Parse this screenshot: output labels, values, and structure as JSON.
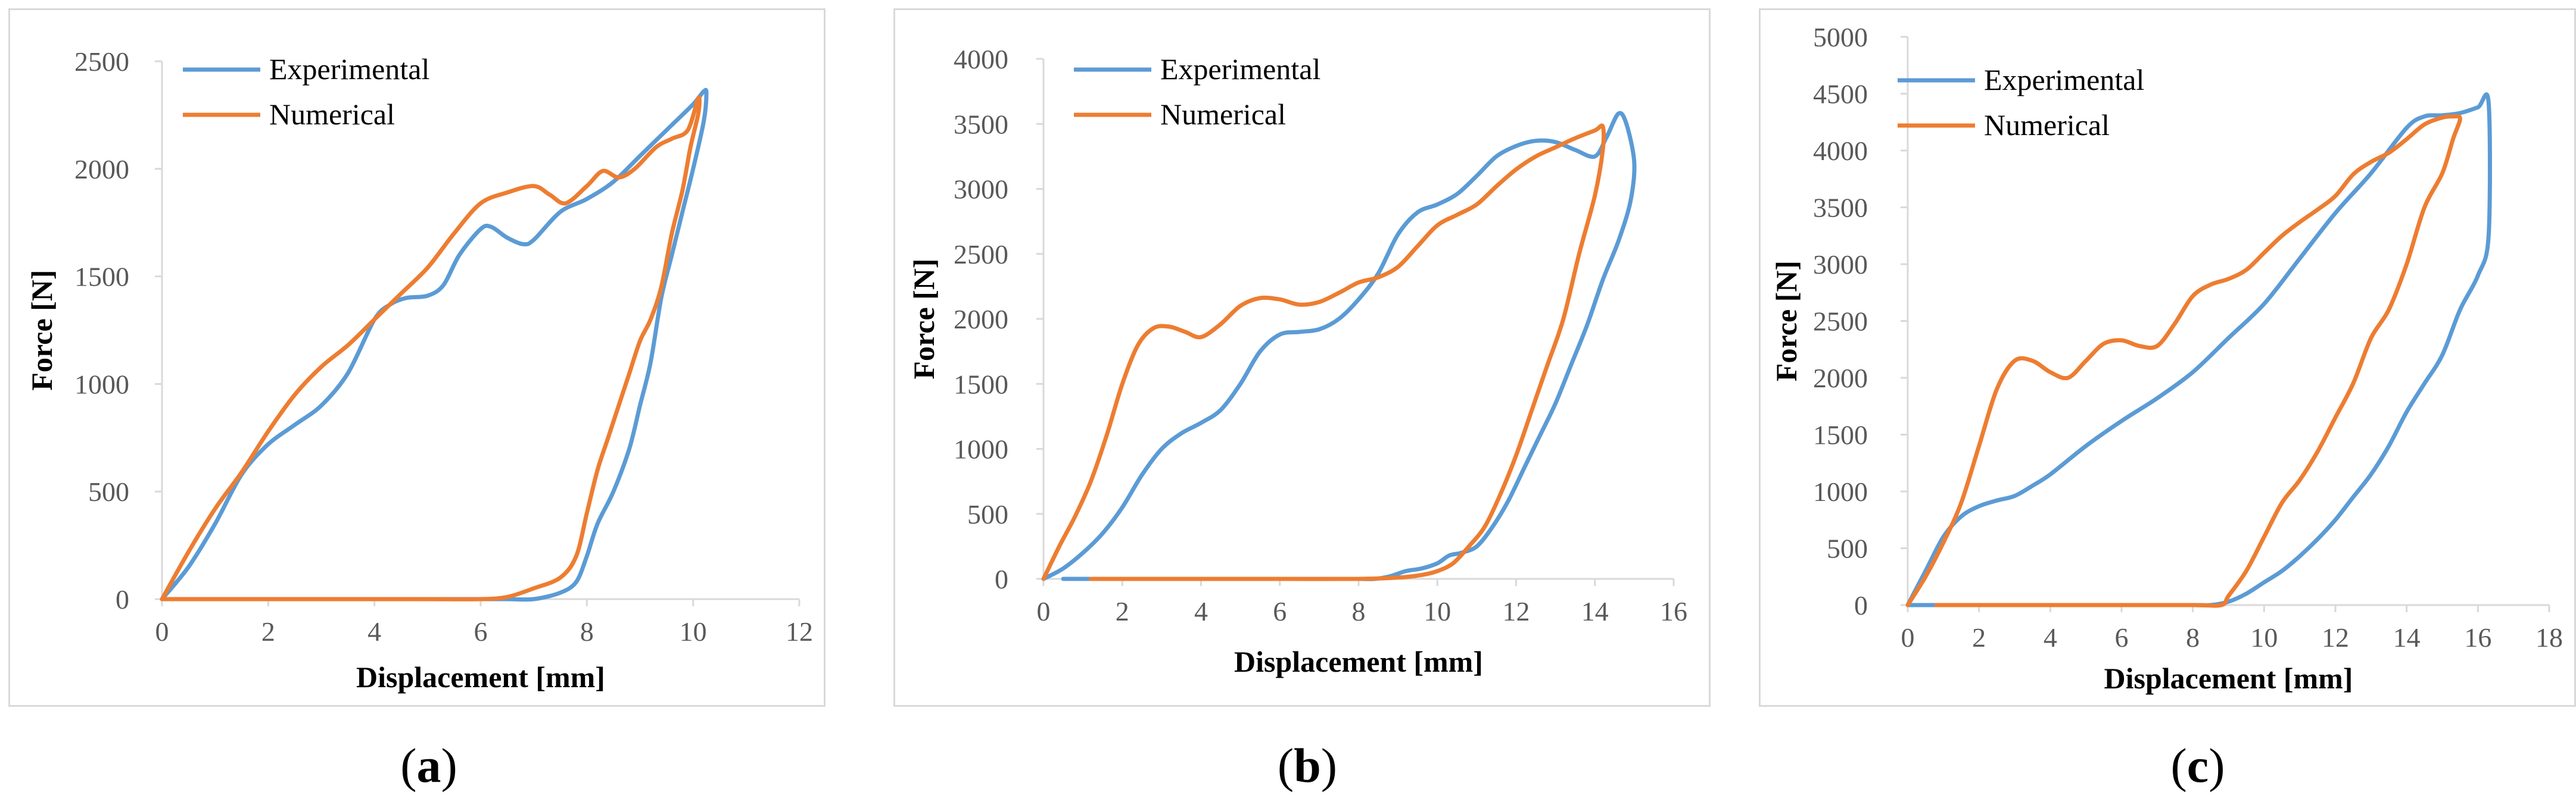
{
  "colors": {
    "experimental": "#5b9bd5",
    "numerical": "#ed7d31",
    "axis": "#d9d9d9",
    "tick": "#595959"
  },
  "captions": [
    {
      "open": "(",
      "letter": "a",
      "close": ")"
    },
    {
      "open": "(",
      "letter": "b",
      "close": ")"
    },
    {
      "open": "(",
      "letter": "c",
      "close": ")"
    }
  ],
  "chart_data": [
    {
      "type": "line",
      "xlabel": "Displacement [mm]",
      "ylabel": "Force [N]",
      "xlim": [
        0,
        12
      ],
      "ylim": [
        0,
        2500
      ],
      "xticks": [
        0,
        2,
        4,
        6,
        8,
        10,
        12
      ],
      "yticks": [
        0,
        500,
        1000,
        1500,
        2000,
        2500
      ],
      "legend_position": "top-left",
      "series": [
        {
          "name": "Experimental",
          "x": [
            0,
            0.5,
            1.0,
            1.5,
            2.0,
            2.5,
            3.0,
            3.5,
            4.0,
            4.3,
            4.6,
            5.0,
            5.3,
            5.6,
            6.0,
            6.2,
            6.5,
            6.8,
            7.0,
            7.5,
            8.0,
            8.5,
            9.0,
            9.5,
            10.0,
            10.2,
            10.25,
            10.2,
            10.0,
            9.8,
            9.6,
            9.4,
            9.2,
            9.0,
            8.8,
            8.5,
            8.2,
            8.0,
            7.8,
            7.5,
            7.0,
            6.5,
            6.0,
            5.0,
            4.0,
            2.0,
            0
          ],
          "y": [
            0,
            150,
            350,
            580,
            720,
            810,
            900,
            1050,
            1300,
            1370,
            1400,
            1410,
            1460,
            1600,
            1720,
            1730,
            1680,
            1650,
            1670,
            1800,
            1860,
            1940,
            2060,
            2180,
            2300,
            2360,
            2350,
            2220,
            2000,
            1800,
            1600,
            1400,
            1100,
            900,
            700,
            500,
            350,
            200,
            80,
            30,
            0,
            0,
            0,
            0,
            0,
            0,
            0
          ]
        },
        {
          "name": "Numerical",
          "x": [
            0,
            0.5,
            1.0,
            1.5,
            2.0,
            2.5,
            3.0,
            3.5,
            4.0,
            4.5,
            5.0,
            5.5,
            6.0,
            6.5,
            7.0,
            7.3,
            7.6,
            8.0,
            8.3,
            8.6,
            8.9,
            9.3,
            9.6,
            9.9,
            10.1,
            10.1,
            9.95,
            9.8,
            9.6,
            9.4,
            9.2,
            9.0,
            8.8,
            8.6,
            8.4,
            8.2,
            8.0,
            7.8,
            7.5,
            7.0,
            6.5,
            6.0,
            5.0,
            4.0,
            2.0,
            0
          ],
          "y": [
            0,
            220,
            420,
            590,
            780,
            950,
            1080,
            1180,
            1300,
            1420,
            1540,
            1700,
            1840,
            1890,
            1920,
            1880,
            1840,
            1920,
            1990,
            1960,
            2000,
            2100,
            2140,
            2180,
            2330,
            2260,
            2100,
            1900,
            1700,
            1450,
            1300,
            1200,
            1050,
            900,
            750,
            600,
            400,
            200,
            100,
            50,
            10,
            0,
            0,
            0,
            0,
            0
          ]
        }
      ]
    },
    {
      "type": "line",
      "xlabel": "Displacement [mm]",
      "ylabel": "Force [N]",
      "xlim": [
        0,
        16
      ],
      "ylim": [
        0,
        4000
      ],
      "xticks": [
        0,
        2,
        4,
        6,
        8,
        10,
        12,
        14,
        16
      ],
      "yticks": [
        0,
        500,
        1000,
        1500,
        2000,
        2500,
        3000,
        3500,
        4000
      ],
      "legend_position": "top-left",
      "series": [
        {
          "name": "Experimental",
          "x": [
            0,
            0.5,
            1.0,
            1.5,
            2.0,
            2.5,
            3.0,
            3.5,
            4.0,
            4.5,
            5.0,
            5.5,
            6.0,
            6.5,
            7.0,
            7.5,
            8.0,
            8.5,
            9.0,
            9.5,
            10.0,
            10.5,
            11.0,
            11.5,
            12.0,
            12.5,
            13.0,
            13.5,
            14.0,
            14.3,
            14.6,
            14.8,
            15.0,
            14.9,
            14.6,
            14.2,
            13.8,
            13.4,
            13.0,
            12.6,
            12.2,
            11.8,
            11.4,
            11.0,
            10.6,
            10.3,
            10.0,
            9.6,
            9.2,
            8.8,
            8.4,
            8.0,
            7.0,
            6.0,
            4.0,
            2.0,
            0.5
          ],
          "y": [
            0,
            80,
            200,
            350,
            550,
            800,
            1000,
            1120,
            1200,
            1300,
            1500,
            1750,
            1880,
            1900,
            1920,
            2000,
            2150,
            2350,
            2650,
            2820,
            2880,
            2960,
            3100,
            3250,
            3330,
            3370,
            3360,
            3300,
            3250,
            3400,
            3580,
            3500,
            3200,
            2900,
            2600,
            2300,
            1950,
            1650,
            1350,
            1100,
            850,
            600,
            400,
            250,
            200,
            180,
            120,
            80,
            60,
            20,
            0,
            0,
            0,
            0,
            0,
            0,
            0
          ]
        },
        {
          "name": "Numerical",
          "x": [
            0,
            0.4,
            0.8,
            1.2,
            1.6,
            2.0,
            2.4,
            2.8,
            3.2,
            3.6,
            4.0,
            4.5,
            5.0,
            5.5,
            6.0,
            6.5,
            7.0,
            7.5,
            8.0,
            8.5,
            9.0,
            9.5,
            10.0,
            10.5,
            11.0,
            11.5,
            12.0,
            12.5,
            13.0,
            13.5,
            14.0,
            14.2,
            14.2,
            14.0,
            13.6,
            13.2,
            12.8,
            12.4,
            12.0,
            11.6,
            11.2,
            10.8,
            10.4,
            10.0,
            9.6,
            9.0,
            8.0,
            6.0,
            4.0,
            2.0,
            1.2
          ],
          "y": [
            0,
            250,
            480,
            750,
            1100,
            1500,
            1800,
            1930,
            1940,
            1900,
            1860,
            1960,
            2100,
            2160,
            2150,
            2110,
            2130,
            2200,
            2280,
            2320,
            2400,
            2560,
            2720,
            2800,
            2880,
            3020,
            3150,
            3250,
            3320,
            3390,
            3450,
            3480,
            3300,
            2950,
            2500,
            2000,
            1650,
            1300,
            950,
            650,
            400,
            250,
            120,
            60,
            30,
            10,
            0,
            0,
            0,
            0,
            0
          ]
        }
      ]
    },
    {
      "type": "line",
      "xlabel": "Displacement [mm]",
      "ylabel": "Force [N]",
      "xlim": [
        0,
        18
      ],
      "ylim": [
        0,
        5000
      ],
      "xticks": [
        0,
        2,
        4,
        6,
        8,
        10,
        12,
        14,
        16,
        18
      ],
      "yticks": [
        0,
        500,
        1000,
        1500,
        2000,
        2500,
        3000,
        3500,
        4000,
        4500,
        5000
      ],
      "legend_position": "top-left",
      "series": [
        {
          "name": "Experimental",
          "x": [
            0,
            0.5,
            1.0,
            1.5,
            2.0,
            2.5,
            3.0,
            3.5,
            4.0,
            5.0,
            6.0,
            7.0,
            8.0,
            9.0,
            10.0,
            11.0,
            12.0,
            13.0,
            14.0,
            14.5,
            15.0,
            15.5,
            16.0,
            16.3,
            16.3,
            16.0,
            15.5,
            15.0,
            14.5,
            14.0,
            13.5,
            13.0,
            12.5,
            12.0,
            11.5,
            11.0,
            10.5,
            10.0,
            9.5,
            9.0,
            8.5,
            8.0,
            6.0,
            4.0,
            2.0,
            0
          ],
          "y": [
            0,
            300,
            600,
            780,
            870,
            920,
            960,
            1050,
            1150,
            1400,
            1620,
            1820,
            2050,
            2350,
            2650,
            3050,
            3450,
            3800,
            4200,
            4300,
            4310,
            4330,
            4380,
            4420,
            3250,
            2900,
            2600,
            2200,
            1950,
            1700,
            1400,
            1150,
            950,
            750,
            580,
            430,
            300,
            200,
            100,
            30,
            0,
            0,
            0,
            0,
            0,
            0
          ]
        },
        {
          "name": "Numerical",
          "x": [
            0,
            0.5,
            1.0,
            1.5,
            2.0,
            2.5,
            3.0,
            3.5,
            4.0,
            4.5,
            5.0,
            5.5,
            6.0,
            6.5,
            7.0,
            7.5,
            8.0,
            8.5,
            9.0,
            9.5,
            10.0,
            10.5,
            11.0,
            11.5,
            12.0,
            12.5,
            13.0,
            13.5,
            14.0,
            14.5,
            15.0,
            15.3,
            15.5,
            15.3,
            15.0,
            14.5,
            14.0,
            13.5,
            13.0,
            12.5,
            12.0,
            11.5,
            11.0,
            10.5,
            10.0,
            9.5,
            9.0,
            8.8,
            8.0,
            6.0,
            4.0,
            2.0,
            0.8
          ],
          "y": [
            0,
            250,
            550,
            900,
            1400,
            1900,
            2150,
            2150,
            2050,
            2000,
            2150,
            2300,
            2330,
            2280,
            2280,
            2480,
            2720,
            2820,
            2870,
            2950,
            3100,
            3250,
            3370,
            3480,
            3600,
            3790,
            3900,
            3980,
            4100,
            4230,
            4290,
            4300,
            4280,
            4100,
            3800,
            3500,
            3000,
            2600,
            2350,
            1950,
            1650,
            1350,
            1100,
            900,
            600,
            300,
            80,
            0,
            0,
            0,
            0,
            0,
            0
          ]
        }
      ]
    }
  ]
}
